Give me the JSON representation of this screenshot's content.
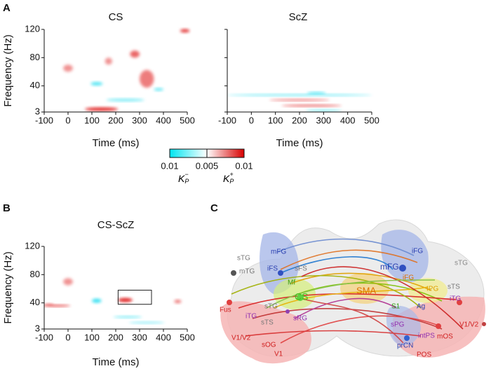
{
  "panels": [
    "A",
    "B",
    "C"
  ],
  "chart_data": [
    {
      "type": "heatmap",
      "title": "CS",
      "xlabel": "Time (ms)",
      "ylabel": "Frequency (Hz)",
      "xlim": [
        -100,
        500
      ],
      "xticks": [
        -100,
        0,
        100,
        200,
        300,
        400,
        500
      ],
      "ylim": [
        3,
        120
      ],
      "yticks": [
        3,
        40,
        80,
        120
      ],
      "blobs": [
        {
          "x": 140,
          "y": 7,
          "w": 140,
          "h": 5,
          "value": 0.01
        },
        {
          "x": 120,
          "y": 43,
          "w": 50,
          "h": 5,
          "value": -0.008
        },
        {
          "x": 240,
          "y": 20,
          "w": 160,
          "h": 4,
          "value": -0.006
        },
        {
          "x": 280,
          "y": 85,
          "w": 40,
          "h": 10,
          "value": 0.007
        },
        {
          "x": 330,
          "y": 50,
          "w": 60,
          "h": 25,
          "value": 0.006
        },
        {
          "x": 490,
          "y": 118,
          "w": 40,
          "h": 5,
          "value": 0.009
        },
        {
          "x": 0,
          "y": 65,
          "w": 40,
          "h": 10,
          "value": 0.005
        },
        {
          "x": 380,
          "y": 35,
          "w": 40,
          "h": 4,
          "value": -0.007
        },
        {
          "x": 170,
          "y": 75,
          "w": 30,
          "h": 10,
          "value": 0.005
        }
      ]
    },
    {
      "type": "heatmap",
      "title": "ScZ",
      "xlabel": "Time (ms)",
      "xlim": [
        -100,
        500
      ],
      "xticks": [
        -100,
        0,
        100,
        200,
        300,
        400,
        500
      ],
      "ylim": [
        3,
        120
      ],
      "yticks": [
        3,
        40,
        80,
        120
      ],
      "blobs": [
        {
          "x": 200,
          "y": 27,
          "w": 600,
          "h": 2,
          "value": -0.006
        },
        {
          "x": 200,
          "y": 20,
          "w": 250,
          "h": 3,
          "value": 0.006
        },
        {
          "x": 250,
          "y": 12,
          "w": 250,
          "h": 3,
          "value": 0.007
        },
        {
          "x": 300,
          "y": 5,
          "w": 150,
          "h": 3,
          "value": -0.006
        },
        {
          "x": 270,
          "y": 30,
          "w": 80,
          "h": 2,
          "value": -0.008
        }
      ]
    },
    {
      "type": "heatmap",
      "title": "CS-ScZ",
      "xlabel": "Time (ms)",
      "ylabel": "Frequency (Hz)",
      "xlim": [
        -100,
        500
      ],
      "xticks": [
        -100,
        0,
        100,
        200,
        300,
        400,
        500
      ],
      "ylim": [
        3,
        120
      ],
      "yticks": [
        3,
        40,
        80,
        120
      ],
      "blobs": [
        {
          "x": -50,
          "y": 36,
          "w": 120,
          "h": 3,
          "value": 0.008
        },
        {
          "x": 120,
          "y": 43,
          "w": 40,
          "h": 6,
          "value": -0.009
        },
        {
          "x": 240,
          "y": 44,
          "w": 60,
          "h": 6,
          "value": 0.01
        },
        {
          "x": 250,
          "y": 20,
          "w": 120,
          "h": 3,
          "value": -0.006
        },
        {
          "x": 0,
          "y": 70,
          "w": 40,
          "h": 10,
          "value": 0.005
        },
        {
          "x": 330,
          "y": 12,
          "w": 150,
          "h": 2,
          "value": -0.005
        },
        {
          "x": 460,
          "y": 42,
          "w": 30,
          "h": 5,
          "value": 0.006
        },
        {
          "x": -80,
          "y": 38,
          "w": 40,
          "h": 3,
          "value": 0.005
        }
      ],
      "highlight": {
        "x": [
          210,
          350
        ],
        "y": [
          38,
          58
        ]
      }
    }
  ],
  "colorbar": {
    "ticks": [
      0.01,
      0.005,
      0.01
    ],
    "labels": [
      "K",
      "K"
    ],
    "signs": [
      "−",
      "+"
    ],
    "subscript": "P"
  },
  "network": {
    "nodes": [
      "sTG",
      "mTG",
      "mFG",
      "iFS",
      "sFS",
      "Mf",
      "CS",
      "SMA",
      "sTG",
      "Fus",
      "iTG",
      "sTS",
      "sRG",
      "V1/V2",
      "sOG",
      "V1",
      "iFG",
      "mFG",
      "sTG",
      "iFG",
      "IPG",
      "sTS",
      "iTG",
      "S1",
      "Ag",
      "sPG",
      "intPS",
      "mOS",
      "prCN",
      "V1/V2",
      "POS"
    ]
  }
}
